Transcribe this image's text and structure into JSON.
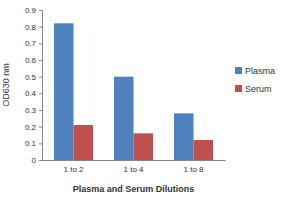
{
  "chart_data": {
    "type": "bar",
    "xlabel": "Plasma and Serum Dilutions",
    "ylabel": "OD630 nm",
    "categories": [
      "1 to 2",
      "1 to 4",
      "1 to 8"
    ],
    "series": [
      {
        "name": "Plasma",
        "color": "#4f81bd",
        "values": [
          0.82,
          0.5,
          0.28
        ]
      },
      {
        "name": "Serum",
        "color": "#c0504d",
        "values": [
          0.21,
          0.16,
          0.12
        ]
      }
    ],
    "ylim": [
      0,
      0.9
    ],
    "yticks": [
      0,
      0.1,
      0.2,
      0.3,
      0.4,
      0.5,
      0.6,
      0.7,
      0.8,
      0.9
    ],
    "grid": false,
    "legend": "right"
  }
}
